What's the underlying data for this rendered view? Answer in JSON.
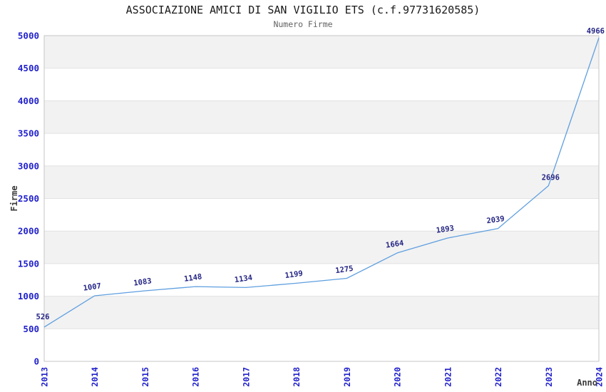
{
  "header": {
    "title": "ASSOCIAZIONE AMICI DI SAN VIGILIO ETS (c.f.97731620585)",
    "subtitle": "Numero Firme"
  },
  "chart_data": {
    "type": "line",
    "title": "ASSOCIAZIONE AMICI DI SAN VIGILIO ETS (c.f.97731620585)",
    "subtitle": "Numero Firme",
    "xlabel": "Anno",
    "ylabel": "Firme",
    "categories": [
      "2013",
      "2014",
      "2015",
      "2016",
      "2017",
      "2018",
      "2019",
      "2020",
      "2021",
      "2022",
      "2023",
      "2024"
    ],
    "values": [
      526,
      1007,
      1083,
      1148,
      1134,
      1199,
      1275,
      1664,
      1893,
      2039,
      2696,
      4966
    ],
    "point_labels": [
      "526",
      "1007",
      "1083",
      "1148",
      "1134",
      "1199",
      "1275",
      "1664",
      "1893",
      "2039",
      "2696",
      "4966"
    ],
    "ylim": [
      0,
      5000
    ],
    "ytick_step": 500,
    "yticks": [
      0,
      500,
      1000,
      1500,
      2000,
      2500,
      3000,
      3500,
      4000,
      4500,
      5000
    ],
    "xticks_rotated": true,
    "grid": true,
    "legend_position": "none",
    "band_ranges": [
      [
        500,
        1000
      ],
      [
        1500,
        2000
      ],
      [
        2500,
        3000
      ],
      [
        3500,
        4000
      ],
      [
        4500,
        5000
      ]
    ]
  },
  "colors": {
    "background": "#ffffff",
    "title": "#1a1a1a",
    "subtitle": "#636363",
    "tick_label": "#2121cc",
    "value_label": "#252585",
    "axis_label": "#3a3a3a",
    "line": "#5f9fe0",
    "band": "#f2f2f2",
    "grid": "#e2e2e2",
    "spine": "#c6c6c6"
  }
}
